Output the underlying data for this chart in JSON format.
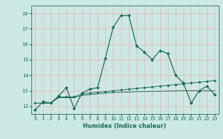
{
  "title": "",
  "xlabel": "Humidex (Indice chaleur)",
  "ylabel": "",
  "bg_color": "#cce8e4",
  "grid_color": "#e8b8b8",
  "line_color": "#1a6b5a",
  "xlim": [
    -0.5,
    23.5
  ],
  "ylim": [
    11.5,
    18.5
  ],
  "yticks": [
    12,
    13,
    14,
    15,
    16,
    17,
    18
  ],
  "xticks": [
    0,
    1,
    2,
    3,
    4,
    5,
    6,
    7,
    8,
    9,
    10,
    11,
    12,
    13,
    14,
    15,
    16,
    17,
    18,
    19,
    20,
    21,
    22,
    23
  ],
  "series1_x": [
    0,
    1,
    2,
    3,
    4,
    5,
    6,
    7,
    8,
    9,
    10,
    11,
    12,
    13,
    14,
    15,
    16,
    17,
    18,
    19,
    20,
    21,
    22,
    23
  ],
  "series1_y": [
    11.75,
    12.3,
    12.2,
    12.65,
    13.2,
    11.85,
    12.85,
    13.1,
    13.2,
    15.1,
    17.1,
    17.85,
    17.85,
    15.9,
    15.5,
    15.0,
    15.6,
    15.4,
    14.0,
    13.5,
    12.2,
    13.0,
    13.3,
    12.75
  ],
  "series2_x": [
    0,
    1,
    2,
    3,
    4,
    5,
    6,
    7,
    8,
    9,
    10,
    11,
    12,
    13,
    14,
    15,
    16,
    17,
    18,
    19,
    20,
    21,
    22,
    23
  ],
  "series2_y": [
    12.2,
    12.2,
    12.2,
    12.6,
    12.6,
    12.6,
    12.8,
    12.85,
    12.9,
    12.95,
    13.0,
    13.05,
    13.1,
    13.15,
    13.2,
    13.25,
    13.3,
    13.35,
    13.4,
    13.45,
    13.5,
    13.55,
    13.6,
    13.65
  ],
  "series3_x": [
    0,
    1,
    2,
    3,
    4,
    5,
    6,
    7,
    8,
    9,
    10,
    11,
    12,
    13,
    14,
    15,
    16,
    17,
    18,
    19,
    20,
    21,
    22,
    23
  ],
  "series3_y": [
    12.2,
    12.2,
    12.2,
    12.55,
    12.55,
    12.55,
    12.7,
    12.75,
    12.8,
    12.85,
    12.88,
    12.9,
    12.92,
    12.94,
    12.95,
    12.96,
    12.97,
    12.98,
    12.99,
    13.0,
    13.0,
    13.0,
    13.0,
    13.0
  ],
  "label_fontsize": 5.0,
  "xlabel_fontsize": 6.0
}
